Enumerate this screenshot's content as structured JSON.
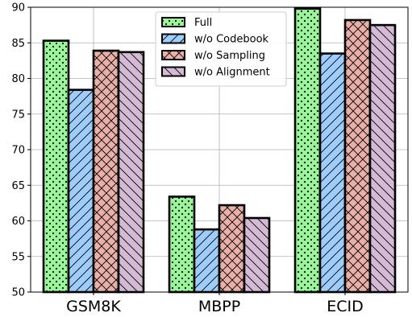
{
  "chart_data": {
    "type": "bar",
    "categories": [
      "GSM8K",
      "MBPP",
      "ECID"
    ],
    "series": [
      {
        "name": "Full",
        "values": [
          85.3,
          63.4,
          89.8
        ],
        "color": "#98f598",
        "hatch": "dots"
      },
      {
        "name": "w/o Codebook",
        "values": [
          78.4,
          58.8,
          83.5
        ],
        "color": "#9ecdfb",
        "hatch": "diag-forward"
      },
      {
        "name": "w/o Sampling",
        "values": [
          83.9,
          62.2,
          88.2
        ],
        "color": "#e8b0a6",
        "hatch": "cross"
      },
      {
        "name": "w/o Alignment",
        "values": [
          83.7,
          60.4,
          87.5
        ],
        "color": "#d5bad6",
        "hatch": "diag-back"
      }
    ],
    "ylim": [
      50,
      90
    ],
    "yticks": [
      50,
      55,
      60,
      65,
      70,
      75,
      80,
      85,
      90
    ],
    "grid": true,
    "legend_position": "top-center"
  }
}
